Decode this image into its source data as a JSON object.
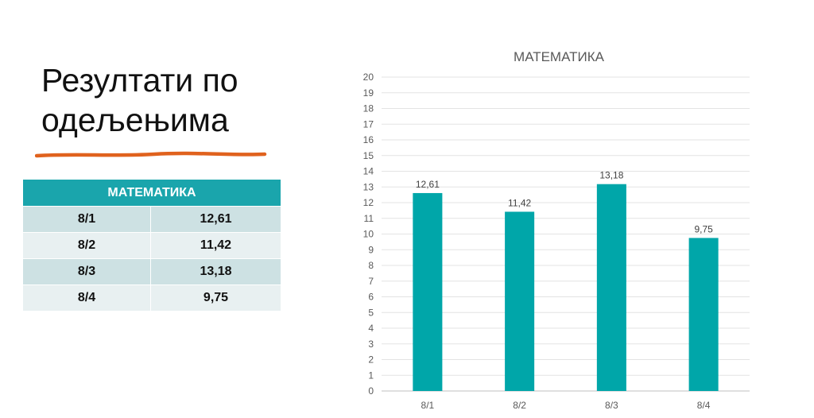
{
  "slide": {
    "title": "Резултати по одељењима"
  },
  "table": {
    "header": "МАТЕМАТИКА",
    "rows": [
      {
        "label": "8/1",
        "value": "12,61"
      },
      {
        "label": "8/2",
        "value": "11,42"
      },
      {
        "label": "8/3",
        "value": "13,18"
      },
      {
        "label": "8/4",
        "value": "9,75"
      }
    ]
  },
  "colors": {
    "accent": "#1AA5AC",
    "underline": "#E0621E",
    "table_row_dark": "#CDE1E3",
    "table_row_light": "#E8F0F1"
  },
  "chart_data": {
    "type": "bar",
    "title": "МАТЕМАТИКА",
    "categories": [
      "8/1",
      "8/2",
      "8/3",
      "8/4"
    ],
    "values": [
      12.61,
      11.42,
      13.18,
      9.75
    ],
    "data_labels": [
      "12,61",
      "11,42",
      "13,18",
      "9,75"
    ],
    "xlabel": "",
    "ylabel": "",
    "ylim": [
      0,
      20
    ],
    "ytick_step": 1,
    "grid": true,
    "legend": "none",
    "bar_color": "#00A6A9"
  }
}
